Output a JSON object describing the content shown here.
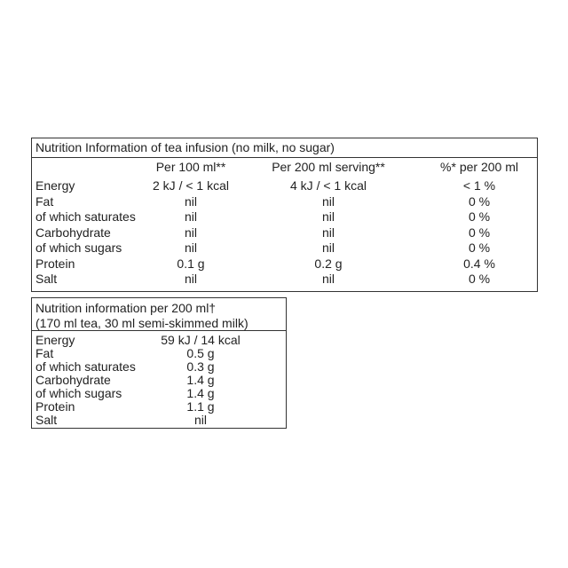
{
  "table1": {
    "title": "Nutrition Information of tea infusion (no milk, no sugar)",
    "columns": [
      "Per 100 ml**",
      "Per 200 ml serving**",
      "%* per 200 ml"
    ],
    "rows": [
      [
        "Energy",
        "2 kJ / < 1 kcal",
        "4 kJ / < 1 kcal",
        "< 1 %"
      ],
      [
        "Fat",
        "nil",
        "nil",
        "0 %"
      ],
      [
        "of which saturates",
        "nil",
        "nil",
        "0 %"
      ],
      [
        "Carbohydrate",
        "nil",
        "nil",
        "0 %"
      ],
      [
        "of which sugars",
        "nil",
        "nil",
        "0 %"
      ],
      [
        "Protein",
        "0.1 g",
        "0.2 g",
        "0.4 %"
      ],
      [
        "Salt",
        "nil",
        "nil",
        "0 %"
      ]
    ]
  },
  "table2": {
    "title": [
      "Nutrition information per 200 ml†",
      "(170 ml tea, 30 ml semi-skimmed milk)"
    ],
    "rows": [
      [
        "Energy",
        "59 kJ / 14 kcal"
      ],
      [
        "Fat",
        "0.5 g"
      ],
      [
        "of which saturates",
        "0.3 g"
      ],
      [
        "Carbohydrate",
        "1.4 g"
      ],
      [
        "of which sugars",
        "1.4 g"
      ],
      [
        "Protein",
        "1.1 g"
      ],
      [
        "Salt",
        "nil"
      ]
    ]
  }
}
